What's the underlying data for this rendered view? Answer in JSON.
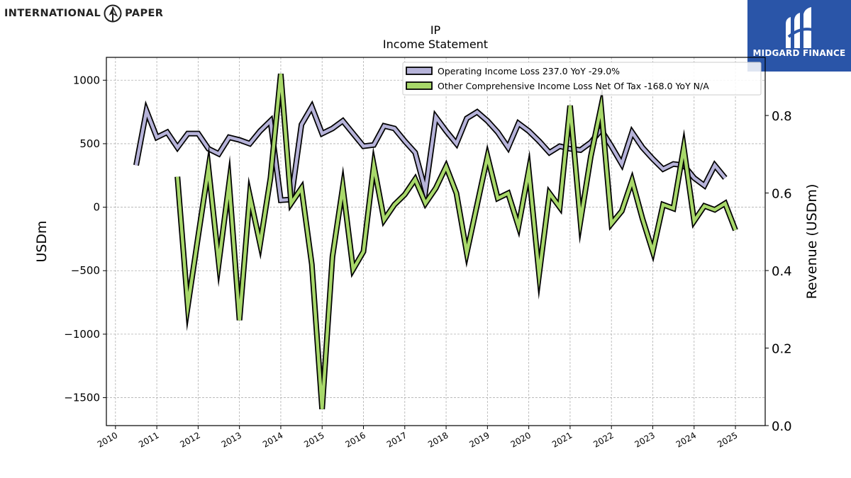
{
  "brand": {
    "left_text": "INTERNATIONAL",
    "right_text": "PAPER",
    "logo_icon": "ip-seedling-icon"
  },
  "badge": {
    "text": "MIDGARD FINANCE",
    "icon": "midgard-m-icon",
    "color": "#2a55a8"
  },
  "chart_data": {
    "type": "line",
    "title": "IP",
    "subtitle": "Income Statement",
    "ylabel": "USDm",
    "ylabel_right": "Revenue (USDm)",
    "ylim": [
      -1720,
      1180
    ],
    "ylim_right": [
      0.0,
      0.95
    ],
    "xlim": [
      2009.78,
      2025.72
    ],
    "yticks": [
      1000,
      500,
      0,
      -500,
      -1000,
      -1500
    ],
    "ytick_labels": [
      "1000",
      "500",
      "0",
      "−500",
      "−1000",
      "−1500"
    ],
    "yticks_right": [
      0.8,
      0.6,
      0.4,
      0.2,
      0.0
    ],
    "ytick_labels_right": [
      "0.8",
      "0.6",
      "0.4",
      "0.2",
      "0.0"
    ],
    "xticks": [
      2010,
      2011,
      2012,
      2013,
      2014,
      2015,
      2016,
      2017,
      2018,
      2019,
      2020,
      2021,
      2022,
      2023,
      2024,
      2025
    ],
    "xtick_labels": [
      "2010",
      "2011",
      "2012",
      "2013",
      "2014",
      "2015",
      "2016",
      "2017",
      "2018",
      "2019",
      "2020",
      "2021",
      "2022",
      "2023",
      "2024",
      "2025"
    ],
    "grid": true,
    "legend_position": "top-right",
    "series": [
      {
        "name": "Operating Income Loss  237.0 YoY -29.0%",
        "color": "#b6b3d9",
        "points": [
          [
            2010.5,
            330
          ],
          [
            2010.75,
            760
          ],
          [
            2011.0,
            550
          ],
          [
            2011.25,
            590
          ],
          [
            2011.5,
            470
          ],
          [
            2011.75,
            580
          ],
          [
            2012.0,
            580
          ],
          [
            2012.25,
            460
          ],
          [
            2012.5,
            420
          ],
          [
            2012.75,
            550
          ],
          [
            2013.0,
            530
          ],
          [
            2013.25,
            500
          ],
          [
            2013.5,
            600
          ],
          [
            2013.75,
            680
          ],
          [
            2014.0,
            55
          ],
          [
            2014.25,
            60
          ],
          [
            2014.5,
            650
          ],
          [
            2014.75,
            790
          ],
          [
            2015.0,
            580
          ],
          [
            2015.25,
            620
          ],
          [
            2015.5,
            680
          ],
          [
            2015.75,
            580
          ],
          [
            2016.0,
            480
          ],
          [
            2016.25,
            490
          ],
          [
            2016.5,
            640
          ],
          [
            2016.75,
            620
          ],
          [
            2017.0,
            520
          ],
          [
            2017.25,
            430
          ],
          [
            2017.5,
            130
          ],
          [
            2017.75,
            710
          ],
          [
            2018.0,
            600
          ],
          [
            2018.25,
            500
          ],
          [
            2018.5,
            700
          ],
          [
            2018.75,
            750
          ],
          [
            2019.0,
            680
          ],
          [
            2019.25,
            590
          ],
          [
            2019.5,
            470
          ],
          [
            2019.75,
            660
          ],
          [
            2020.0,
            600
          ],
          [
            2020.25,
            520
          ],
          [
            2020.5,
            430
          ],
          [
            2020.75,
            480
          ],
          [
            2021.0,
            460
          ],
          [
            2021.25,
            450
          ],
          [
            2021.5,
            510
          ],
          [
            2021.75,
            610
          ],
          [
            2022.0,
            480
          ],
          [
            2022.25,
            340
          ],
          [
            2022.5,
            590
          ],
          [
            2022.75,
            470
          ],
          [
            2023.0,
            380
          ],
          [
            2023.25,
            300
          ],
          [
            2023.5,
            340
          ],
          [
            2023.75,
            330
          ],
          [
            2024.0,
            230
          ],
          [
            2024.25,
            170
          ],
          [
            2024.5,
            330
          ],
          [
            2024.75,
            230
          ]
        ]
      },
      {
        "name": "Other Comprehensive Income Loss Net Of Tax  -168.0 YoY N/A",
        "color": "#a8d86a",
        "points": [
          [
            2011.5,
            240
          ],
          [
            2011.75,
            -780
          ],
          [
            2012.0,
            -230
          ],
          [
            2012.25,
            310
          ],
          [
            2012.5,
            -440
          ],
          [
            2012.75,
            190
          ],
          [
            2013.0,
            -890
          ],
          [
            2013.25,
            90
          ],
          [
            2013.5,
            -290
          ],
          [
            2013.75,
            230
          ],
          [
            2014.0,
            1050
          ],
          [
            2014.25,
            30
          ],
          [
            2014.5,
            150
          ],
          [
            2014.75,
            -450
          ],
          [
            2015.0,
            -1590
          ],
          [
            2015.25,
            -390
          ],
          [
            2015.5,
            160
          ],
          [
            2015.75,
            -490
          ],
          [
            2016.0,
            -350
          ],
          [
            2016.25,
            330
          ],
          [
            2016.5,
            -100
          ],
          [
            2016.75,
            20
          ],
          [
            2017.0,
            100
          ],
          [
            2017.25,
            220
          ],
          [
            2017.5,
            30
          ],
          [
            2017.75,
            150
          ],
          [
            2018.0,
            320
          ],
          [
            2018.25,
            110
          ],
          [
            2018.5,
            -360
          ],
          [
            2018.75,
            20
          ],
          [
            2019.0,
            400
          ],
          [
            2019.25,
            70
          ],
          [
            2019.5,
            110
          ],
          [
            2019.75,
            -150
          ],
          [
            2020.0,
            290
          ],
          [
            2020.25,
            -530
          ],
          [
            2020.5,
            110
          ],
          [
            2020.75,
            0
          ],
          [
            2021.0,
            800
          ],
          [
            2021.25,
            -110
          ],
          [
            2021.5,
            400
          ],
          [
            2021.75,
            790
          ],
          [
            2022.0,
            -130
          ],
          [
            2022.25,
            -30
          ],
          [
            2022.5,
            210
          ],
          [
            2022.75,
            -90
          ],
          [
            2023.0,
            -350
          ],
          [
            2023.25,
            20
          ],
          [
            2023.5,
            -10
          ],
          [
            2023.75,
            470
          ],
          [
            2024.0,
            -110
          ],
          [
            2024.25,
            10
          ],
          [
            2024.5,
            -20
          ],
          [
            2024.75,
            30
          ],
          [
            2025.0,
            -180
          ]
        ]
      }
    ]
  }
}
